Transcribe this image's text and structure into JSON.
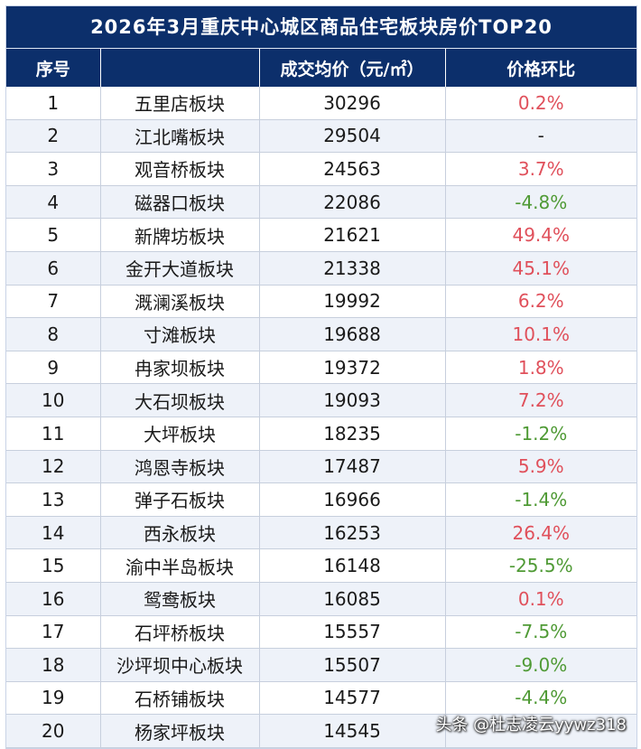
{
  "title": "2026年3月重庆中心城区商品住宅板块房价TOP20",
  "headers": {
    "index": "序号",
    "name": "",
    "price": "成交均价（元/㎡）",
    "change": "价格环比"
  },
  "rows": [
    {
      "index": "1",
      "name": "五里店板块",
      "price": "30296",
      "change": "0.2%",
      "trend": "pos"
    },
    {
      "index": "2",
      "name": "江北嘴板块",
      "price": "29504",
      "change": "-",
      "trend": "flat"
    },
    {
      "index": "3",
      "name": "观音桥板块",
      "price": "24563",
      "change": "3.7%",
      "trend": "pos"
    },
    {
      "index": "4",
      "name": "磁器口板块",
      "price": "22086",
      "change": "-4.8%",
      "trend": "neg"
    },
    {
      "index": "5",
      "name": "新牌坊板块",
      "price": "21621",
      "change": "49.4%",
      "trend": "pos"
    },
    {
      "index": "6",
      "name": "金开大道板块",
      "price": "21338",
      "change": "45.1%",
      "trend": "pos"
    },
    {
      "index": "7",
      "name": "溉澜溪板块",
      "price": "19992",
      "change": "6.2%",
      "trend": "pos"
    },
    {
      "index": "8",
      "name": "寸滩板块",
      "price": "19688",
      "change": "10.1%",
      "trend": "pos"
    },
    {
      "index": "9",
      "name": "冉家坝板块",
      "price": "19372",
      "change": "1.8%",
      "trend": "pos"
    },
    {
      "index": "10",
      "name": "大石坝板块",
      "price": "19093",
      "change": "7.2%",
      "trend": "pos"
    },
    {
      "index": "11",
      "name": "大坪板块",
      "price": "18235",
      "change": "-1.2%",
      "trend": "neg"
    },
    {
      "index": "12",
      "name": "鸿恩寺板块",
      "price": "17487",
      "change": "5.9%",
      "trend": "pos"
    },
    {
      "index": "13",
      "name": "弹子石板块",
      "price": "16966",
      "change": "-1.4%",
      "trend": "neg"
    },
    {
      "index": "14",
      "name": "西永板块",
      "price": "16253",
      "change": "26.4%",
      "trend": "pos"
    },
    {
      "index": "15",
      "name": "渝中半岛板块",
      "price": "16148",
      "change": "-25.5%",
      "trend": "neg"
    },
    {
      "index": "16",
      "name": "鸳鸯板块",
      "price": "16085",
      "change": "0.1%",
      "trend": "pos"
    },
    {
      "index": "17",
      "name": "石坪桥板块",
      "price": "15557",
      "change": "-7.5%",
      "trend": "neg"
    },
    {
      "index": "18",
      "name": "沙坪坝中心板块",
      "price": "15507",
      "change": "-9.0%",
      "trend": "neg"
    },
    {
      "index": "19",
      "name": "石桥铺板块",
      "price": "14577",
      "change": "-4.4%",
      "trend": "neg"
    },
    {
      "index": "20",
      "name": "杨家坪板块",
      "price": "14545",
      "change": "",
      "trend": "pos"
    }
  ],
  "watermark": "头条 @杜志凌云yywz318",
  "colors": {
    "header_bg": "#0c2f6b",
    "positive": "#e0505b",
    "negative": "#4f9a35",
    "stripe": "#eef2f9"
  }
}
